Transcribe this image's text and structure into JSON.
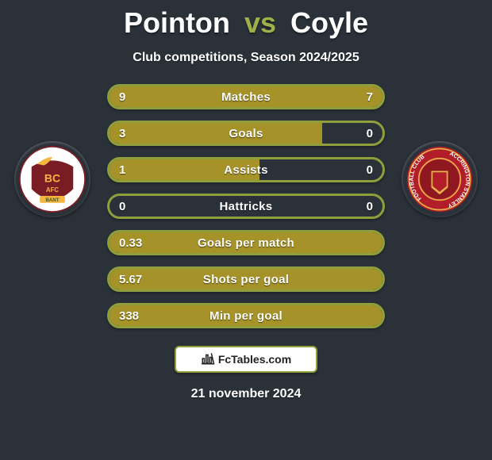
{
  "title": {
    "player1": "Pointon",
    "vs": "vs",
    "player2": "Coyle",
    "vs_color": "#9fb04a"
  },
  "subtitle": "Club competitions, Season 2024/2025",
  "background_color": "#2a3138",
  "crest_left": {
    "text": "BC AFC",
    "outer_color": "#ffffff",
    "inner_color": "#7a1c23",
    "ribbon_color": "#f4b63f"
  },
  "crest_right": {
    "text": "ACCRINGTON STANLEY FOOTBALL CLUB",
    "outer_color": "#b11e2a",
    "inner_color": "#8f1720",
    "ring_color": "#e8b04a"
  },
  "bars": [
    {
      "label": "Matches",
      "left_value": "9",
      "right_value": "7",
      "left_fill_pct": 56,
      "right_fill_pct": 44,
      "fill_color": "#a59228",
      "border_color": "#8e9f3c"
    },
    {
      "label": "Goals",
      "left_value": "3",
      "right_value": "0",
      "left_fill_pct": 78,
      "right_fill_pct": 0,
      "fill_color": "#a59228",
      "border_color": "#8e9f3c"
    },
    {
      "label": "Assists",
      "left_value": "1",
      "right_value": "0",
      "left_fill_pct": 55,
      "right_fill_pct": 0,
      "fill_color": "#a59228",
      "border_color": "#8e9f3c"
    },
    {
      "label": "Hattricks",
      "left_value": "0",
      "right_value": "0",
      "left_fill_pct": 0,
      "right_fill_pct": 0,
      "fill_color": "#a59228",
      "border_color": "#8e9f3c"
    },
    {
      "label": "Goals per match",
      "left_value": "0.33",
      "right_value": "",
      "left_fill_pct": 100,
      "right_fill_pct": 0,
      "fill_color": "#a59228",
      "border_color": "#8e9f3c"
    },
    {
      "label": "Shots per goal",
      "left_value": "5.67",
      "right_value": "",
      "left_fill_pct": 100,
      "right_fill_pct": 0,
      "fill_color": "#a59228",
      "border_color": "#8e9f3c"
    },
    {
      "label": "Min per goal",
      "left_value": "338",
      "right_value": "",
      "left_fill_pct": 100,
      "right_fill_pct": 0,
      "fill_color": "#a59228",
      "border_color": "#8e9f3c"
    }
  ],
  "footer": {
    "brand": "FcTables.com",
    "date": "21 november 2024",
    "border_color": "#90a03b"
  }
}
